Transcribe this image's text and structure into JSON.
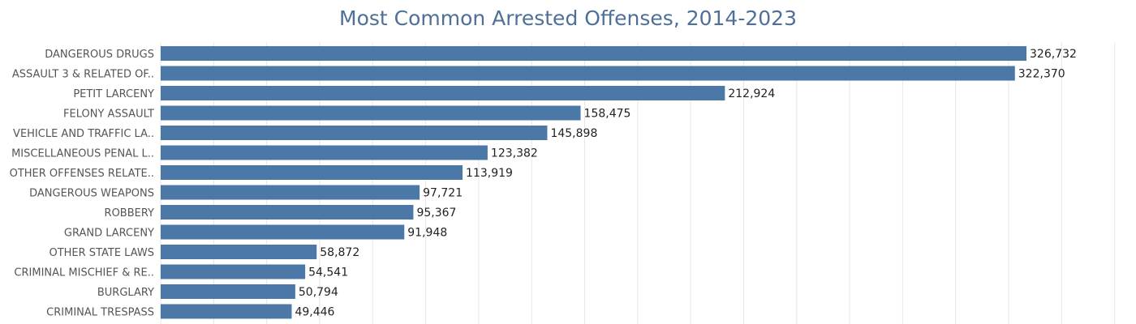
{
  "chart_data": {
    "type": "bar",
    "orientation": "horizontal",
    "title": "Most Common Arrested Offenses, 2014-2023",
    "xlabel": "",
    "ylabel": "",
    "xlim": [
      0,
      365000
    ],
    "grid": true,
    "categories": [
      "DANGEROUS DRUGS",
      "ASSAULT 3 & RELATED OF..",
      "PETIT LARCENY",
      "FELONY ASSAULT",
      "VEHICLE AND TRAFFIC LA..",
      "MISCELLANEOUS PENAL L..",
      "OTHER OFFENSES RELATE..",
      "DANGEROUS WEAPONS",
      "ROBBERY",
      "GRAND LARCENY",
      "OTHER STATE LAWS",
      "CRIMINAL MISCHIEF & RE..",
      "BURGLARY",
      "CRIMINAL TRESPASS"
    ],
    "values": [
      326732,
      322370,
      212924,
      158475,
      145898,
      123382,
      113919,
      97721,
      95367,
      91948,
      58872,
      54541,
      50794,
      49446
    ],
    "value_labels": [
      "326,732",
      "322,370",
      "212,924",
      "158,475",
      "145,898",
      "123,382",
      "113,919",
      "97,721",
      "95,367",
      "91,948",
      "58,872",
      "54,541",
      "50,794",
      "49,446"
    ],
    "colors": {
      "bar": "#4c78a8",
      "title": "#4e6f98"
    }
  }
}
